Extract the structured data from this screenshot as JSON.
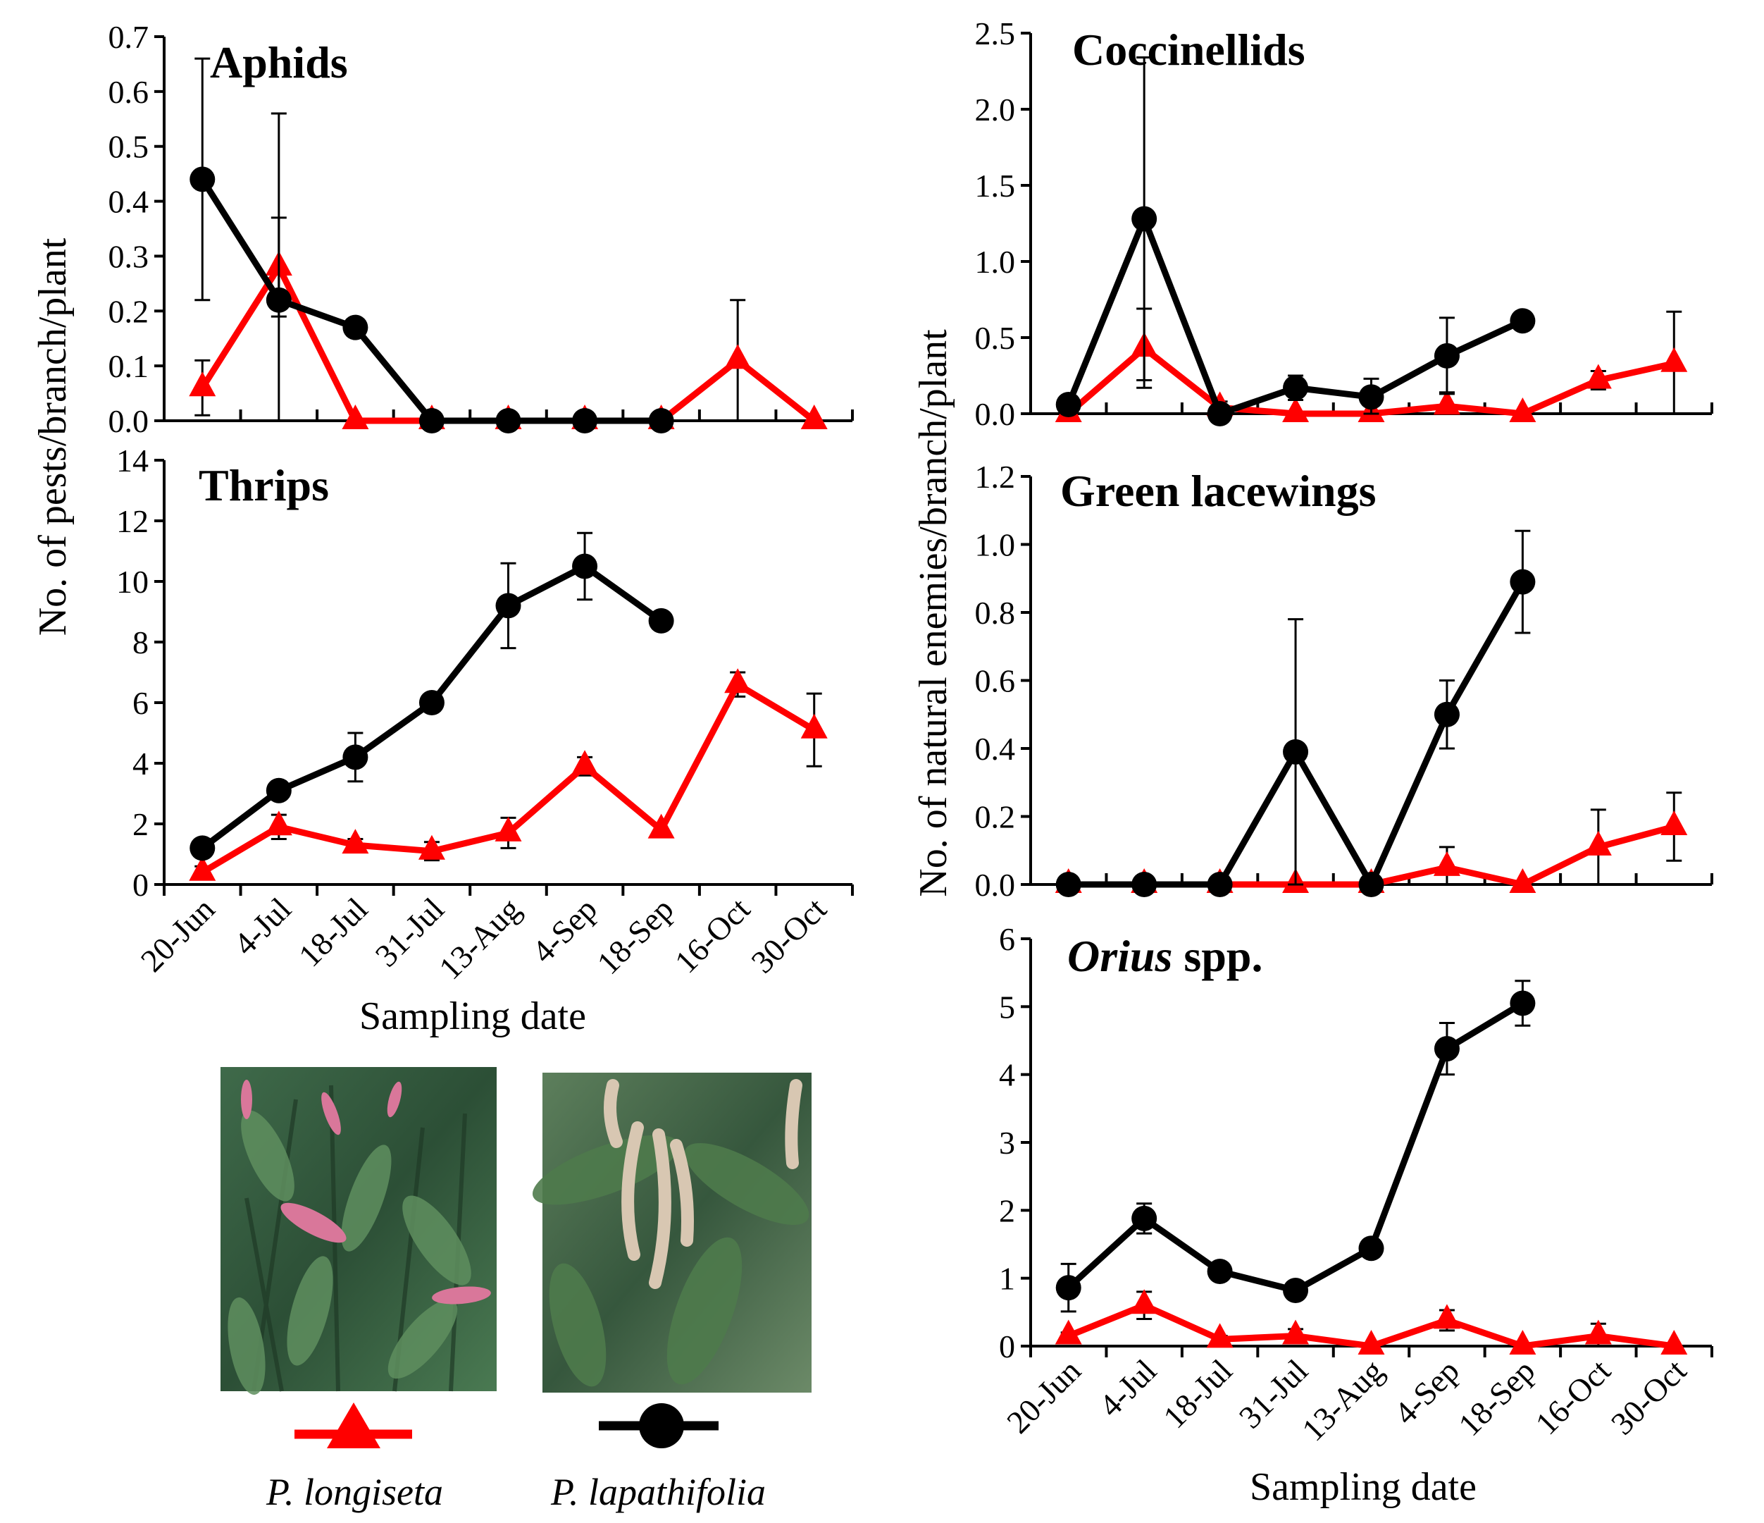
{
  "chart_data": {
    "type": "line",
    "categories": [
      "20-Jun",
      "4-Jul",
      "18-Jul",
      "31-Jul",
      "13-Aug",
      "4-Sep",
      "18-Sep",
      "16-Oct",
      "30-Oct"
    ],
    "left_ylabel": "No. of pests/branch/plant",
    "right_ylabel": "No. of natural enemies/branch/plant",
    "xlabel": "Sampling date",
    "series_names": [
      "P. longiseta",
      "P. lapathifolia"
    ],
    "colors": {
      "P. longiseta": "#ff0000",
      "P. lapathifolia": "#000000"
    },
    "panels": [
      {
        "id": "aphids",
        "title": "Aphids",
        "ylim": [
          0,
          0.7
        ],
        "yticks": [
          "0.0",
          "0.1",
          "0.2",
          "0.3",
          "0.4",
          "0.5",
          "0.6",
          "0.7"
        ],
        "series": [
          {
            "name": "P. longiseta",
            "values": [
              0.06,
              0.28,
              0,
              0,
              0,
              0,
              0,
              0.11,
              0
            ],
            "err": [
              0.05,
              0.09,
              0,
              0,
              0,
              0,
              0,
              0.11,
              0
            ]
          },
          {
            "name": "P. lapathifolia",
            "values": [
              0.44,
              0.22,
              0.17,
              0,
              0,
              0,
              0,
              null,
              null
            ],
            "err": [
              0.22,
              0.34,
              0,
              0,
              0,
              0,
              0,
              null,
              null
            ]
          }
        ]
      },
      {
        "id": "thrips",
        "title": "Thrips",
        "ylim": [
          0,
          14
        ],
        "yticks": [
          "0",
          "2",
          "4",
          "6",
          "8",
          "10",
          "12",
          "14"
        ],
        "series": [
          {
            "name": "P. longiseta",
            "values": [
              0.4,
              1.9,
              1.3,
              1.1,
              1.7,
              3.9,
              1.8,
              6.6,
              5.1
            ],
            "err": [
              0.2,
              0.4,
              0.2,
              0.3,
              0.5,
              0.3,
              0,
              0.4,
              1.2
            ]
          },
          {
            "name": "P. lapathifolia",
            "values": [
              1.2,
              3.1,
              4.2,
              6.0,
              9.2,
              10.5,
              8.7,
              null,
              null
            ],
            "err": [
              0.3,
              0.3,
              0.8,
              0,
              1.4,
              1.1,
              0,
              null,
              null
            ]
          }
        ]
      },
      {
        "id": "coccinellids",
        "title": "Coccinellids",
        "ylim": [
          0,
          2.5
        ],
        "yticks": [
          "0.0",
          "0.5",
          "1.0",
          "1.5",
          "2.0",
          "2.5"
        ],
        "series": [
          {
            "name": "P. longiseta",
            "values": [
              0,
              0.43,
              0.04,
              0,
              0,
              0.05,
              0,
              0.22,
              0.33
            ],
            "err": [
              0,
              0.26,
              0.04,
              0,
              0,
              0.09,
              0,
              0.06,
              0.34
            ]
          },
          {
            "name": "P. lapathifolia",
            "values": [
              0.06,
              1.28,
              0,
              0.17,
              0.11,
              0.38,
              0.61,
              null,
              null
            ],
            "err": [
              0.02,
              1.06,
              0,
              0.08,
              0.12,
              0.25,
              0,
              null,
              null
            ]
          }
        ]
      },
      {
        "id": "lacewings",
        "title": "Green lacewings",
        "ylim": [
          0,
          1.2
        ],
        "yticks": [
          "0.0",
          "0.2",
          "0.4",
          "0.6",
          "0.8",
          "1.0",
          "1.2"
        ],
        "series": [
          {
            "name": "P. longiseta",
            "values": [
              0,
              0,
              0,
              0,
              0,
              0.05,
              0,
              0.11,
              0.17
            ],
            "err": [
              0,
              0,
              0,
              0,
              0,
              0.06,
              0,
              0.11,
              0.1
            ]
          },
          {
            "name": "P. lapathifolia",
            "values": [
              0,
              0,
              0,
              0.39,
              0,
              0.5,
              0.89,
              null,
              null
            ],
            "err": [
              0,
              0,
              0,
              0.39,
              0,
              0.1,
              0.15,
              null,
              null
            ]
          }
        ]
      },
      {
        "id": "orius",
        "title_italic": "Orius",
        "title_rest": " spp.",
        "ylim": [
          0,
          6
        ],
        "yticks": [
          "0",
          "1",
          "2",
          "3",
          "4",
          "5",
          "6"
        ],
        "series": [
          {
            "name": "P. longiseta",
            "values": [
              0.15,
              0.6,
              0.1,
              0.15,
              0,
              0.38,
              0,
              0.15,
              0
            ],
            "err": [
              0.05,
              0.2,
              0.05,
              0.1,
              0,
              0.15,
              0,
              0.18,
              0
            ]
          },
          {
            "name": "P. lapathifolia",
            "values": [
              0.86,
              1.88,
              1.1,
              0.82,
              1.44,
              4.38,
              5.05,
              null,
              null
            ],
            "err": [
              0.35,
              0.22,
              0,
              0,
              0,
              0.38,
              0.33,
              null,
              null
            ]
          }
        ]
      }
    ]
  },
  "legend": {
    "items": [
      {
        "label": "P. longiseta",
        "marker": "triangle",
        "color": "#ff0000"
      },
      {
        "label": "P. lapathifolia",
        "marker": "circle",
        "color": "#000000"
      }
    ]
  },
  "photos": [
    {
      "name": "photo-p-longiseta",
      "subject": "P. longiseta plant with pink flower spikes"
    },
    {
      "name": "photo-p-lapathifolia",
      "subject": "P. lapathifolia plant with pale drooping flower spikes"
    }
  ]
}
